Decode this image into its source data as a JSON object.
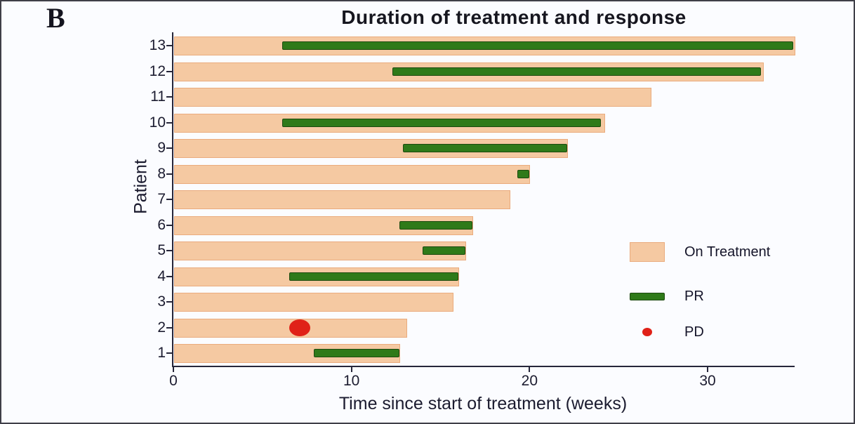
{
  "panel_label": "B",
  "chart_data": {
    "type": "bar",
    "variant": "swimmer-plot",
    "title": "Duration of treatment and response",
    "xlabel": "Time since start of treatment (weeks)",
    "ylabel": "Patient",
    "x_ticks": [
      "0",
      "10",
      "20",
      "30"
    ],
    "x_tick_values": [
      0,
      10,
      20,
      30
    ],
    "x_range": [
      0,
      35
    ],
    "grid": false,
    "legend_position": "center-right",
    "legend": [
      {
        "label": "On Treatment",
        "swatch": "rect",
        "color": "#f5c9a2"
      },
      {
        "label": "PR",
        "swatch": "bar",
        "color": "#2f7a19"
      },
      {
        "label": "PD",
        "swatch": "dot",
        "color": "#e02118"
      }
    ],
    "colors": {
      "on_treatment_fill": "#f5c9a2",
      "on_treatment_border": "#eaab7d",
      "pr_fill": "#2f7a19",
      "pr_border": "#1d4a0f",
      "pd_fill": "#e02118",
      "axis": "#26263a",
      "text": "#1b1b2f"
    },
    "patients": [
      {
        "id": 13,
        "on_treatment_weeks": 34.9,
        "pr_start": 6.1,
        "pr_end": 34.8,
        "pd_week": null
      },
      {
        "id": 12,
        "on_treatment_weeks": 33.1,
        "pr_start": 12.3,
        "pr_end": 33.0,
        "pd_week": null
      },
      {
        "id": 11,
        "on_treatment_weeks": 26.8,
        "pr_start": null,
        "pr_end": null,
        "pd_week": null
      },
      {
        "id": 10,
        "on_treatment_weeks": 24.2,
        "pr_start": 6.1,
        "pr_end": 24.0,
        "pd_week": null
      },
      {
        "id": 9,
        "on_treatment_weeks": 22.1,
        "pr_start": 12.9,
        "pr_end": 22.1,
        "pd_week": null
      },
      {
        "id": 8,
        "on_treatment_weeks": 20.0,
        "pr_start": 19.3,
        "pr_end": 20.0,
        "pd_week": null
      },
      {
        "id": 7,
        "on_treatment_weeks": 18.9,
        "pr_start": null,
        "pr_end": null,
        "pd_week": null
      },
      {
        "id": 6,
        "on_treatment_weeks": 16.8,
        "pr_start": 12.7,
        "pr_end": 16.8,
        "pd_week": null
      },
      {
        "id": 5,
        "on_treatment_weeks": 16.4,
        "pr_start": 14.0,
        "pr_end": 16.4,
        "pd_week": null
      },
      {
        "id": 4,
        "on_treatment_weeks": 16.0,
        "pr_start": 6.5,
        "pr_end": 16.0,
        "pd_week": null
      },
      {
        "id": 3,
        "on_treatment_weeks": 15.7,
        "pr_start": null,
        "pr_end": null,
        "pd_week": null
      },
      {
        "id": 2,
        "on_treatment_weeks": 13.1,
        "pr_start": null,
        "pr_end": null,
        "pd_week": 7.1
      },
      {
        "id": 1,
        "on_treatment_weeks": 12.7,
        "pr_start": 7.9,
        "pr_end": 12.7,
        "pd_week": null
      }
    ]
  }
}
